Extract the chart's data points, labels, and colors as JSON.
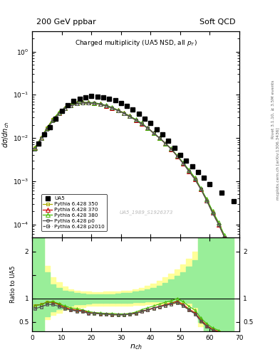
{
  "title_left": "200 GeV ppbar",
  "title_right": "Soft QCD",
  "plot_title": "Charged multiplicity (UA5 NSD, all p_{T})",
  "xlabel": "n_{ch}",
  "ylabel_main": "dσ/dn_{ch}",
  "ylabel_ratio": "Ratio to UA5",
  "right_label": "Rivet 3.1.10, ≥ 3.5M events",
  "right_label2": "mcplots.cern.ch [arXiv:1306.3436]",
  "watermark": "UA5_1989_S1926373",
  "ua5_x": [
    2,
    4,
    6,
    8,
    10,
    12,
    14,
    16,
    18,
    20,
    22,
    24,
    26,
    28,
    30,
    32,
    34,
    36,
    38,
    40,
    42,
    44,
    46,
    48,
    50,
    52,
    54,
    56,
    58,
    60,
    64,
    68
  ],
  "ua5_y": [
    0.0075,
    0.012,
    0.018,
    0.028,
    0.042,
    0.058,
    0.072,
    0.082,
    0.088,
    0.092,
    0.091,
    0.088,
    0.082,
    0.074,
    0.065,
    0.056,
    0.046,
    0.037,
    0.028,
    0.022,
    0.016,
    0.012,
    0.0085,
    0.006,
    0.004,
    0.003,
    0.0022,
    0.0016,
    0.0012,
    0.00085,
    0.00055,
    0.00035
  ],
  "p350_x": [
    1,
    3,
    5,
    7,
    9,
    11,
    13,
    15,
    17,
    19,
    21,
    23,
    25,
    27,
    29,
    31,
    33,
    35,
    37,
    39,
    41,
    43,
    45,
    47,
    49,
    51,
    53,
    55,
    57,
    59,
    61,
    63,
    65
  ],
  "p350_y": [
    0.006,
    0.01,
    0.017,
    0.027,
    0.038,
    0.048,
    0.056,
    0.062,
    0.065,
    0.065,
    0.063,
    0.06,
    0.055,
    0.049,
    0.043,
    0.037,
    0.031,
    0.026,
    0.021,
    0.017,
    0.013,
    0.01,
    0.0075,
    0.0055,
    0.0038,
    0.0026,
    0.0017,
    0.0011,
    0.00065,
    0.00035,
    0.00018,
    0.0001,
    5e-05
  ],
  "p370_x": [
    1,
    3,
    5,
    7,
    9,
    11,
    13,
    15,
    17,
    19,
    21,
    23,
    25,
    27,
    29,
    31,
    33,
    35,
    37,
    39,
    41,
    43,
    45,
    47,
    49,
    51,
    53,
    55,
    57,
    59,
    61,
    63,
    65
  ],
  "p370_y": [
    0.006,
    0.01,
    0.017,
    0.027,
    0.038,
    0.049,
    0.057,
    0.063,
    0.066,
    0.066,
    0.064,
    0.061,
    0.056,
    0.05,
    0.044,
    0.038,
    0.032,
    0.026,
    0.021,
    0.017,
    0.013,
    0.01,
    0.0075,
    0.0055,
    0.0038,
    0.0026,
    0.0017,
    0.0011,
    0.00065,
    0.00036,
    0.00019,
    0.0001,
    5e-05
  ],
  "p380_x": [
    1,
    3,
    5,
    7,
    9,
    11,
    13,
    15,
    17,
    19,
    21,
    23,
    25,
    27,
    29,
    31,
    33,
    35,
    37,
    39,
    41,
    43,
    45,
    47,
    49,
    51,
    53,
    55,
    57,
    59,
    61,
    63,
    65
  ],
  "p380_y": [
    0.006,
    0.01,
    0.017,
    0.027,
    0.039,
    0.05,
    0.058,
    0.064,
    0.067,
    0.067,
    0.065,
    0.062,
    0.057,
    0.051,
    0.044,
    0.038,
    0.032,
    0.027,
    0.022,
    0.017,
    0.013,
    0.01,
    0.0075,
    0.0056,
    0.0039,
    0.0027,
    0.0018,
    0.0012,
    0.00068,
    0.00038,
    0.0002,
    0.00011,
    5.5e-05
  ],
  "pp0_x": [
    1,
    3,
    5,
    7,
    9,
    11,
    13,
    15,
    17,
    19,
    21,
    23,
    25,
    27,
    29,
    31,
    33,
    35,
    37,
    39,
    41,
    43,
    45,
    47,
    49,
    51,
    53,
    55,
    57,
    59,
    61,
    63,
    65
  ],
  "pp0_y": [
    0.0055,
    0.0095,
    0.016,
    0.025,
    0.036,
    0.047,
    0.055,
    0.061,
    0.064,
    0.064,
    0.063,
    0.06,
    0.055,
    0.049,
    0.043,
    0.037,
    0.031,
    0.026,
    0.021,
    0.017,
    0.013,
    0.01,
    0.0075,
    0.0055,
    0.0038,
    0.0026,
    0.0017,
    0.0011,
    0.00065,
    0.00035,
    0.00018,
    0.0001,
    5e-05
  ],
  "pp2010_x": [
    1,
    3,
    5,
    7,
    9,
    11,
    13,
    15,
    17,
    19,
    21,
    23,
    25,
    27,
    29,
    31,
    33,
    35,
    37,
    39,
    41,
    43,
    45,
    47,
    49,
    51,
    53,
    55,
    57,
    59,
    61,
    63,
    65
  ],
  "pp2010_y": [
    0.0055,
    0.0095,
    0.016,
    0.025,
    0.036,
    0.047,
    0.055,
    0.061,
    0.064,
    0.064,
    0.063,
    0.06,
    0.055,
    0.049,
    0.043,
    0.037,
    0.031,
    0.026,
    0.021,
    0.017,
    0.013,
    0.01,
    0.0075,
    0.0055,
    0.0038,
    0.0026,
    0.0017,
    0.0011,
    0.00065,
    0.00035,
    0.00018,
    0.0001,
    5e-05
  ],
  "color_350": "#aaaa00",
  "color_370": "#cc0000",
  "color_380": "#44bb00",
  "color_p0": "#555555",
  "color_p2010": "#555555",
  "bg_yellow": "#ffff99",
  "bg_green": "#99ee99",
  "ylim_main": [
    5e-05,
    3.0
  ],
  "ylim_ratio": [
    0.3,
    2.3
  ],
  "xlim": [
    0,
    70
  ],
  "band_x": [
    0,
    2,
    4,
    6,
    8,
    10,
    12,
    14,
    16,
    18,
    20,
    22,
    24,
    26,
    28,
    30,
    32,
    34,
    36,
    38,
    40,
    42,
    44,
    46,
    48,
    50,
    52,
    54,
    56,
    58,
    60,
    62,
    64,
    66,
    68
  ],
  "yellow_lo": [
    0.3,
    0.3,
    0.55,
    0.65,
    0.7,
    0.75,
    0.78,
    0.8,
    0.82,
    0.84,
    0.84,
    0.84,
    0.84,
    0.85,
    0.85,
    0.85,
    0.85,
    0.86,
    0.86,
    0.87,
    0.87,
    0.88,
    0.88,
    0.89,
    0.9,
    0.9,
    0.85,
    0.75,
    0.4,
    0.3,
    0.3,
    0.3,
    0.3,
    0.3,
    0.3
  ],
  "yellow_hi": [
    2.3,
    2.3,
    1.7,
    1.45,
    1.35,
    1.25,
    1.2,
    1.17,
    1.15,
    1.14,
    1.13,
    1.13,
    1.14,
    1.14,
    1.15,
    1.16,
    1.17,
    1.2,
    1.23,
    1.27,
    1.32,
    1.38,
    1.45,
    1.53,
    1.62,
    1.72,
    1.85,
    2.0,
    2.3,
    2.3,
    2.3,
    2.3,
    2.3,
    2.3,
    2.3
  ],
  "green_lo": [
    0.3,
    0.3,
    0.62,
    0.72,
    0.77,
    0.82,
    0.85,
    0.87,
    0.88,
    0.89,
    0.9,
    0.9,
    0.9,
    0.91,
    0.91,
    0.91,
    0.91,
    0.92,
    0.92,
    0.93,
    0.93,
    0.93,
    0.93,
    0.94,
    0.94,
    0.93,
    0.9,
    0.82,
    0.5,
    0.3,
    0.3,
    0.3,
    0.3,
    0.3,
    0.3
  ],
  "green_hi": [
    2.3,
    2.3,
    1.55,
    1.3,
    1.22,
    1.17,
    1.14,
    1.12,
    1.1,
    1.09,
    1.08,
    1.08,
    1.09,
    1.09,
    1.1,
    1.11,
    1.12,
    1.14,
    1.16,
    1.19,
    1.22,
    1.27,
    1.33,
    1.4,
    1.48,
    1.56,
    1.68,
    1.82,
    2.3,
    2.3,
    2.3,
    2.3,
    2.3,
    2.3,
    2.3
  ],
  "ratio_r350_x": [
    1,
    3,
    5,
    7,
    9,
    11,
    13,
    15,
    17,
    19,
    21,
    23,
    25,
    27,
    29,
    31,
    33,
    35,
    37,
    39,
    41,
    43,
    45,
    47,
    49,
    51,
    53,
    55,
    57,
    59,
    61,
    63,
    65
  ],
  "ratio_r350_y": [
    0.85,
    0.87,
    0.92,
    0.92,
    0.87,
    0.8,
    0.76,
    0.74,
    0.73,
    0.69,
    0.68,
    0.67,
    0.66,
    0.65,
    0.65,
    0.65,
    0.66,
    0.68,
    0.72,
    0.75,
    0.79,
    0.82,
    0.85,
    0.88,
    0.92,
    0.85,
    0.76,
    0.68,
    0.53,
    0.41,
    0.33,
    0.28,
    0.14
  ],
  "ratio_r370_x": [
    1,
    3,
    5,
    7,
    9,
    11,
    13,
    15,
    17,
    19,
    21,
    23,
    25,
    27,
    29,
    31,
    33,
    35,
    37,
    39,
    41,
    43,
    45,
    47,
    49,
    51,
    53,
    55,
    57,
    59,
    61,
    63,
    65
  ],
  "ratio_r370_y": [
    0.85,
    0.87,
    0.92,
    0.92,
    0.87,
    0.81,
    0.77,
    0.75,
    0.74,
    0.7,
    0.69,
    0.68,
    0.67,
    0.66,
    0.66,
    0.66,
    0.67,
    0.69,
    0.73,
    0.76,
    0.8,
    0.83,
    0.87,
    0.9,
    0.94,
    0.87,
    0.77,
    0.69,
    0.54,
    0.42,
    0.34,
    0.29,
    0.14
  ],
  "ratio_r380_x": [
    1,
    3,
    5,
    7,
    9,
    11,
    13,
    15,
    17,
    19,
    21,
    23,
    25,
    27,
    29,
    31,
    33,
    35,
    37,
    39,
    41,
    43,
    45,
    47,
    49,
    51,
    53,
    55,
    57,
    59,
    61,
    63,
    65
  ],
  "ratio_r380_y": [
    0.85,
    0.87,
    0.92,
    0.93,
    0.89,
    0.84,
    0.8,
    0.78,
    0.76,
    0.72,
    0.7,
    0.69,
    0.68,
    0.68,
    0.67,
    0.67,
    0.68,
    0.71,
    0.76,
    0.8,
    0.84,
    0.88,
    0.92,
    0.95,
    1.0,
    0.93,
    0.83,
    0.75,
    0.58,
    0.46,
    0.37,
    0.32,
    0.16
  ],
  "ratio_pp0_x": [
    1,
    3,
    5,
    7,
    9,
    11,
    13,
    15,
    17,
    19,
    21,
    23,
    25,
    27,
    29,
    31,
    33,
    35,
    37,
    39,
    41,
    43,
    45,
    47,
    49,
    51,
    53,
    55,
    57,
    59,
    61,
    63,
    65
  ],
  "ratio_pp0_y": [
    0.78,
    0.82,
    0.87,
    0.87,
    0.83,
    0.78,
    0.75,
    0.73,
    0.72,
    0.68,
    0.68,
    0.67,
    0.66,
    0.65,
    0.65,
    0.65,
    0.66,
    0.68,
    0.72,
    0.75,
    0.79,
    0.82,
    0.85,
    0.88,
    0.91,
    0.84,
    0.75,
    0.67,
    0.51,
    0.4,
    0.32,
    0.27,
    0.14
  ],
  "ratio_pp2010_x": [
    1,
    3,
    5,
    7,
    9,
    11,
    13,
    15,
    17,
    19,
    21,
    23,
    25,
    27,
    29,
    31,
    33,
    35,
    37,
    39,
    41,
    43,
    45,
    47,
    49,
    51,
    53,
    55,
    57,
    59,
    61,
    63,
    65
  ],
  "ratio_pp2010_y": [
    0.78,
    0.82,
    0.87,
    0.87,
    0.83,
    0.78,
    0.75,
    0.73,
    0.72,
    0.68,
    0.68,
    0.67,
    0.66,
    0.65,
    0.65,
    0.65,
    0.66,
    0.68,
    0.72,
    0.75,
    0.79,
    0.82,
    0.85,
    0.88,
    0.91,
    0.84,
    0.75,
    0.67,
    0.51,
    0.4,
    0.32,
    0.27,
    0.14
  ]
}
